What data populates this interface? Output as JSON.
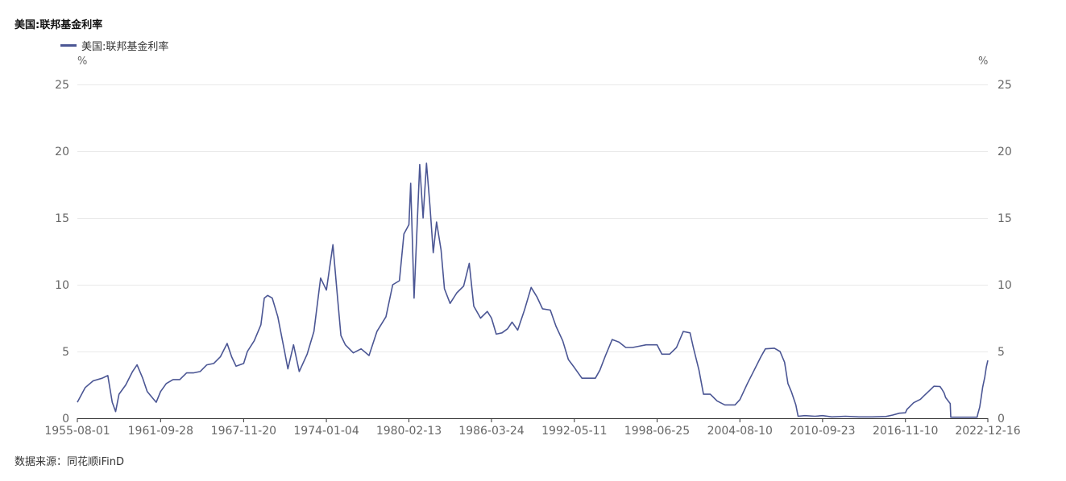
{
  "colors": {
    "series": "#4b5694",
    "grid": "#e9e9e9",
    "axis": "#333333"
  },
  "header": {
    "title": "美国:联邦基金利率"
  },
  "legend": {
    "label": "美国:联邦基金利率"
  },
  "units": {
    "left": "%",
    "right": "%"
  },
  "footer": {
    "source": "数据来源：同花顺iFinD"
  },
  "chart_data": {
    "type": "line",
    "title": "美国:联邦基金利率",
    "ylabel": "%",
    "y2label": "%",
    "ylim": [
      0,
      25
    ],
    "yticks": [
      0,
      5,
      10,
      15,
      20,
      25
    ],
    "xlim": [
      "1955-08-01",
      "2022-12-16"
    ],
    "xticks": [
      "1955-08-01",
      "1961-09-28",
      "1967-11-20",
      "1974-01-04",
      "1980-02-13",
      "1986-03-24",
      "1992-05-11",
      "1998-06-25",
      "2004-08-10",
      "2010-09-23",
      "2016-11-10",
      "2022-12-16"
    ],
    "grid": true,
    "legend_position": "top-left",
    "series": [
      {
        "name": "美国:联邦基金利率",
        "points": [
          [
            "1955-08-01",
            1.2
          ],
          [
            "1956-03-01",
            2.3
          ],
          [
            "1956-10-01",
            2.8
          ],
          [
            "1957-06-01",
            3.0
          ],
          [
            "1957-11-01",
            3.2
          ],
          [
            "1958-03-01",
            1.2
          ],
          [
            "1958-06-01",
            0.5
          ],
          [
            "1958-09-01",
            1.8
          ],
          [
            "1959-03-01",
            2.5
          ],
          [
            "1959-09-01",
            3.5
          ],
          [
            "1960-01-01",
            4.0
          ],
          [
            "1960-06-01",
            3.0
          ],
          [
            "1960-10-01",
            2.0
          ],
          [
            "1961-03-01",
            1.5
          ],
          [
            "1961-06-01",
            1.2
          ],
          [
            "1961-09-28",
            2.0
          ],
          [
            "1962-03-01",
            2.6
          ],
          [
            "1962-09-01",
            2.9
          ],
          [
            "1963-03-01",
            2.9
          ],
          [
            "1963-09-01",
            3.4
          ],
          [
            "1964-03-01",
            3.4
          ],
          [
            "1964-09-01",
            3.5
          ],
          [
            "1965-03-01",
            4.0
          ],
          [
            "1965-09-01",
            4.1
          ],
          [
            "1966-03-01",
            4.6
          ],
          [
            "1966-09-01",
            5.6
          ],
          [
            "1967-01-01",
            4.6
          ],
          [
            "1967-05-01",
            3.9
          ],
          [
            "1967-11-20",
            4.1
          ],
          [
            "1968-03-01",
            5.0
          ],
          [
            "1968-09-01",
            5.8
          ],
          [
            "1969-03-01",
            7.0
          ],
          [
            "1969-06-01",
            9.0
          ],
          [
            "1969-09-01",
            9.2
          ],
          [
            "1970-01-01",
            9.0
          ],
          [
            "1970-06-01",
            7.6
          ],
          [
            "1970-12-01",
            5.0
          ],
          [
            "1971-03-01",
            3.7
          ],
          [
            "1971-08-01",
            5.5
          ],
          [
            "1972-01-01",
            3.5
          ],
          [
            "1972-08-01",
            4.8
          ],
          [
            "1973-02-01",
            6.5
          ],
          [
            "1973-08-01",
            10.5
          ],
          [
            "1973-12-01",
            9.8
          ],
          [
            "1974-01-04",
            9.6
          ],
          [
            "1974-07-01",
            13.0
          ],
          [
            "1974-10-01",
            10.0
          ],
          [
            "1975-02-01",
            6.2
          ],
          [
            "1975-06-01",
            5.5
          ],
          [
            "1976-01-01",
            4.9
          ],
          [
            "1976-08-01",
            5.2
          ],
          [
            "1977-03-01",
            4.7
          ],
          [
            "1977-10-01",
            6.5
          ],
          [
            "1978-06-01",
            7.6
          ],
          [
            "1978-12-01",
            10.0
          ],
          [
            "1979-06-01",
            10.3
          ],
          [
            "1979-10-01",
            13.8
          ],
          [
            "1980-02-13",
            14.5
          ],
          [
            "1980-04-01",
            17.6
          ],
          [
            "1980-07-01",
            9.0
          ],
          [
            "1980-12-01",
            19.0
          ],
          [
            "1981-03-01",
            15.0
          ],
          [
            "1981-06-01",
            19.1
          ],
          [
            "1981-09-01",
            16.0
          ],
          [
            "1981-12-01",
            12.4
          ],
          [
            "1982-03-01",
            14.7
          ],
          [
            "1982-07-01",
            12.6
          ],
          [
            "1982-10-01",
            9.7
          ],
          [
            "1983-03-01",
            8.6
          ],
          [
            "1983-09-01",
            9.4
          ],
          [
            "1984-03-01",
            9.9
          ],
          [
            "1984-08-01",
            11.6
          ],
          [
            "1984-12-01",
            8.4
          ],
          [
            "1985-06-01",
            7.5
          ],
          [
            "1985-12-01",
            8.0
          ],
          [
            "1986-03-24",
            7.5
          ],
          [
            "1986-08-01",
            6.3
          ],
          [
            "1987-01-01",
            6.4
          ],
          [
            "1987-06-01",
            6.7
          ],
          [
            "1987-10-01",
            7.2
          ],
          [
            "1988-03-01",
            6.6
          ],
          [
            "1988-09-01",
            8.1
          ],
          [
            "1989-03-01",
            9.8
          ],
          [
            "1989-08-01",
            9.1
          ],
          [
            "1990-01-01",
            8.2
          ],
          [
            "1990-08-01",
            8.1
          ],
          [
            "1991-01-01",
            6.9
          ],
          [
            "1991-07-01",
            5.8
          ],
          [
            "1991-12-01",
            4.4
          ],
          [
            "1992-05-11",
            3.8
          ],
          [
            "1992-12-01",
            3.0
          ],
          [
            "1993-06-01",
            3.0
          ],
          [
            "1993-12-01",
            3.0
          ],
          [
            "1994-04-01",
            3.6
          ],
          [
            "1994-09-01",
            4.7
          ],
          [
            "1995-03-01",
            5.9
          ],
          [
            "1995-09-01",
            5.7
          ],
          [
            "1996-03-01",
            5.3
          ],
          [
            "1996-09-01",
            5.3
          ],
          [
            "1997-03-01",
            5.4
          ],
          [
            "1997-09-01",
            5.5
          ],
          [
            "1998-03-01",
            5.5
          ],
          [
            "1998-06-25",
            5.5
          ],
          [
            "1998-11-01",
            4.8
          ],
          [
            "1999-06-01",
            4.8
          ],
          [
            "1999-12-01",
            5.3
          ],
          [
            "2000-06-01",
            6.5
          ],
          [
            "2000-12-01",
            6.4
          ],
          [
            "2001-03-01",
            5.3
          ],
          [
            "2001-08-01",
            3.6
          ],
          [
            "2001-12-01",
            1.8
          ],
          [
            "2002-06-01",
            1.8
          ],
          [
            "2002-12-01",
            1.3
          ],
          [
            "2003-07-01",
            1.0
          ],
          [
            "2004-04-01",
            1.0
          ],
          [
            "2004-08-10",
            1.4
          ],
          [
            "2005-03-01",
            2.6
          ],
          [
            "2005-09-01",
            3.6
          ],
          [
            "2006-03-01",
            4.6
          ],
          [
            "2006-07-01",
            5.2
          ],
          [
            "2007-03-01",
            5.25
          ],
          [
            "2007-08-01",
            5.0
          ],
          [
            "2007-12-01",
            4.2
          ],
          [
            "2008-03-01",
            2.6
          ],
          [
            "2008-06-01",
            2.0
          ],
          [
            "2008-10-01",
            1.0
          ],
          [
            "2008-12-01",
            0.15
          ],
          [
            "2009-06-01",
            0.2
          ],
          [
            "2010-03-01",
            0.15
          ],
          [
            "2010-09-23",
            0.2
          ],
          [
            "2011-06-01",
            0.1
          ],
          [
            "2012-06-01",
            0.15
          ],
          [
            "2013-06-01",
            0.1
          ],
          [
            "2014-06-01",
            0.1
          ],
          [
            "2015-06-01",
            0.13
          ],
          [
            "2015-12-01",
            0.24
          ],
          [
            "2016-06-01",
            0.38
          ],
          [
            "2016-11-10",
            0.41
          ],
          [
            "2016-12-20",
            0.66
          ],
          [
            "2017-03-20",
            0.91
          ],
          [
            "2017-06-20",
            1.16
          ],
          [
            "2017-12-20",
            1.42
          ],
          [
            "2018-03-25",
            1.68
          ],
          [
            "2018-06-20",
            1.91
          ],
          [
            "2018-09-30",
            2.18
          ],
          [
            "2018-12-20",
            2.4
          ],
          [
            "2019-06-01",
            2.38
          ],
          [
            "2019-08-01",
            2.13
          ],
          [
            "2019-09-20",
            1.9
          ],
          [
            "2019-11-01",
            1.55
          ],
          [
            "2020-03-05",
            1.1
          ],
          [
            "2020-03-20",
            0.08
          ],
          [
            "2021-06-01",
            0.08
          ],
          [
            "2022-03-01",
            0.08
          ],
          [
            "2022-03-20",
            0.33
          ],
          [
            "2022-05-10",
            0.83
          ],
          [
            "2022-06-20",
            1.58
          ],
          [
            "2022-07-30",
            2.33
          ],
          [
            "2022-09-25",
            3.08
          ],
          [
            "2022-11-05",
            3.83
          ],
          [
            "2022-12-16",
            4.33
          ]
        ]
      }
    ]
  }
}
